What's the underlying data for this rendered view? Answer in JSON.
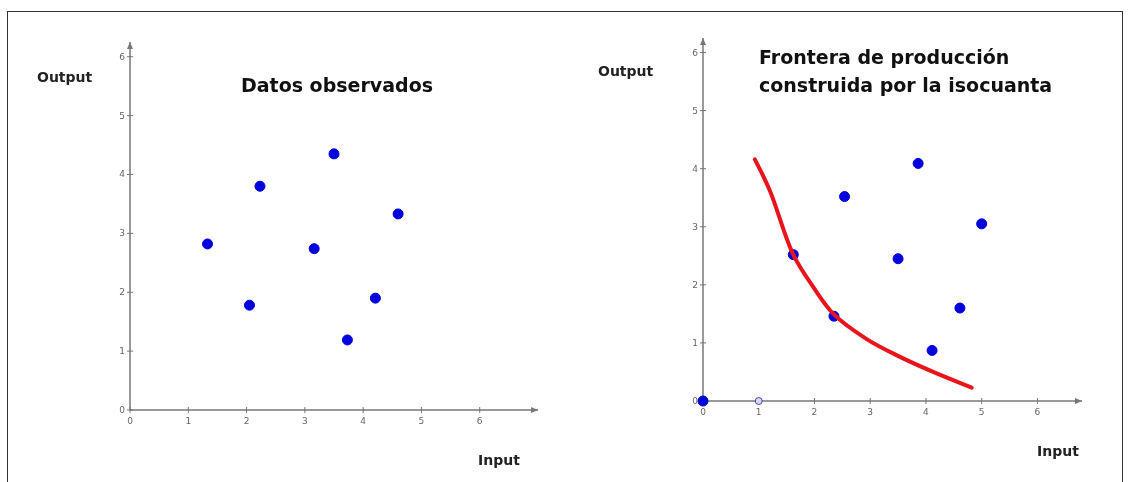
{
  "chart_data": [
    {
      "type": "scatter",
      "title": "Datos observados",
      "xlabel": "Input",
      "ylabel": "Output",
      "xlim": [
        0,
        7
      ],
      "ylim": [
        0,
        6.25
      ],
      "xticks": [
        0,
        1,
        2,
        3,
        4,
        5,
        6
      ],
      "yticks": [
        0,
        1,
        2,
        3,
        4,
        5,
        6
      ],
      "grid": false,
      "marker": "circle",
      "series": [
        {
          "color": "#0000dd",
          "x": [
            1.33,
            2.05,
            2.23,
            3.16,
            3.5,
            3.73,
            4.21,
            4.6
          ],
          "values": [
            2.82,
            1.78,
            3.8,
            2.74,
            4.35,
            1.19,
            1.9,
            3.33
          ]
        }
      ]
    },
    {
      "type": "scatter",
      "title": "Frontera de producción\nconstruida por la isocuanta",
      "xlabel": "Input",
      "ylabel": "Output",
      "xlim": [
        0,
        6.8
      ],
      "ylim": [
        0,
        6.25
      ],
      "xticks": [
        0,
        1,
        2,
        3,
        4,
        5,
        6
      ],
      "yticks": [
        0,
        1,
        2,
        3,
        4,
        5,
        6
      ],
      "grid": false,
      "marker": "circle",
      "series": [
        {
          "color": "#0000dd",
          "x": [
            0,
            1.62,
            2.35,
            2.54,
            3.5,
            3.86,
            4.11,
            4.61,
            5.0
          ],
          "values": [
            0,
            2.52,
            1.46,
            3.52,
            2.45,
            4.09,
            0.87,
            1.6,
            3.05
          ]
        },
        {
          "color": "#d8d8f0",
          "x": [
            1
          ],
          "values": [
            0
          ]
        },
        {
          "type": "line",
          "color": "#e8141c",
          "line_style": "solid",
          "marker": "none",
          "x": [
            0.93,
            1.2,
            1.62,
            1.98,
            2.34,
            2.93,
            3.47,
            4.13,
            4.82
          ],
          "values": [
            4.16,
            3.62,
            2.52,
            1.96,
            1.5,
            1.07,
            0.79,
            0.5,
            0.23
          ]
        }
      ]
    }
  ]
}
